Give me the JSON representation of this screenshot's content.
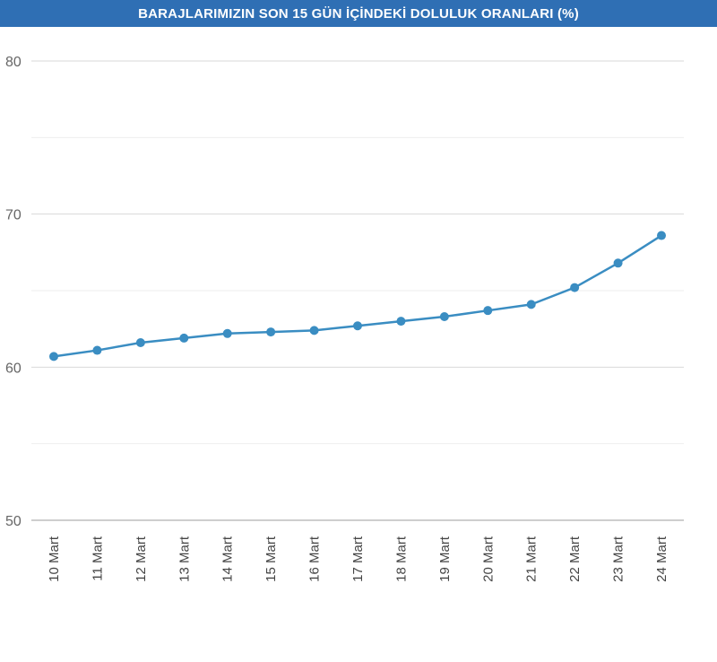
{
  "chart_data": {
    "type": "line",
    "title": "BARAJLARIMIZIN SON 15 GÜN İÇİNDEKİ DOLULUK ORANLARI (%)",
    "categories": [
      "10 Mart",
      "11 Mart",
      "12 Mart",
      "13 Mart",
      "14 Mart",
      "15 Mart",
      "16 Mart",
      "17 Mart",
      "18 Mart",
      "19 Mart",
      "20 Mart",
      "21 Mart",
      "22 Mart",
      "23 Mart",
      "24 Mart"
    ],
    "series": [
      {
        "values": [
          60.7,
          61.1,
          61.6,
          61.9,
          62.2,
          62.3,
          62.4,
          62.7,
          63.0,
          63.3,
          63.7,
          64.1,
          65.2,
          66.8,
          68.6
        ]
      }
    ],
    "ylim": [
      50,
      80
    ],
    "yticks": [
      50,
      60,
      70,
      80
    ],
    "xlabel": "",
    "ylabel": "",
    "grid": true,
    "colors": {
      "line": "#3a8dc2",
      "header": "#2f6fb4",
      "grid_major": "#d9d9d9",
      "grid_minor": "#eeeeee"
    }
  }
}
